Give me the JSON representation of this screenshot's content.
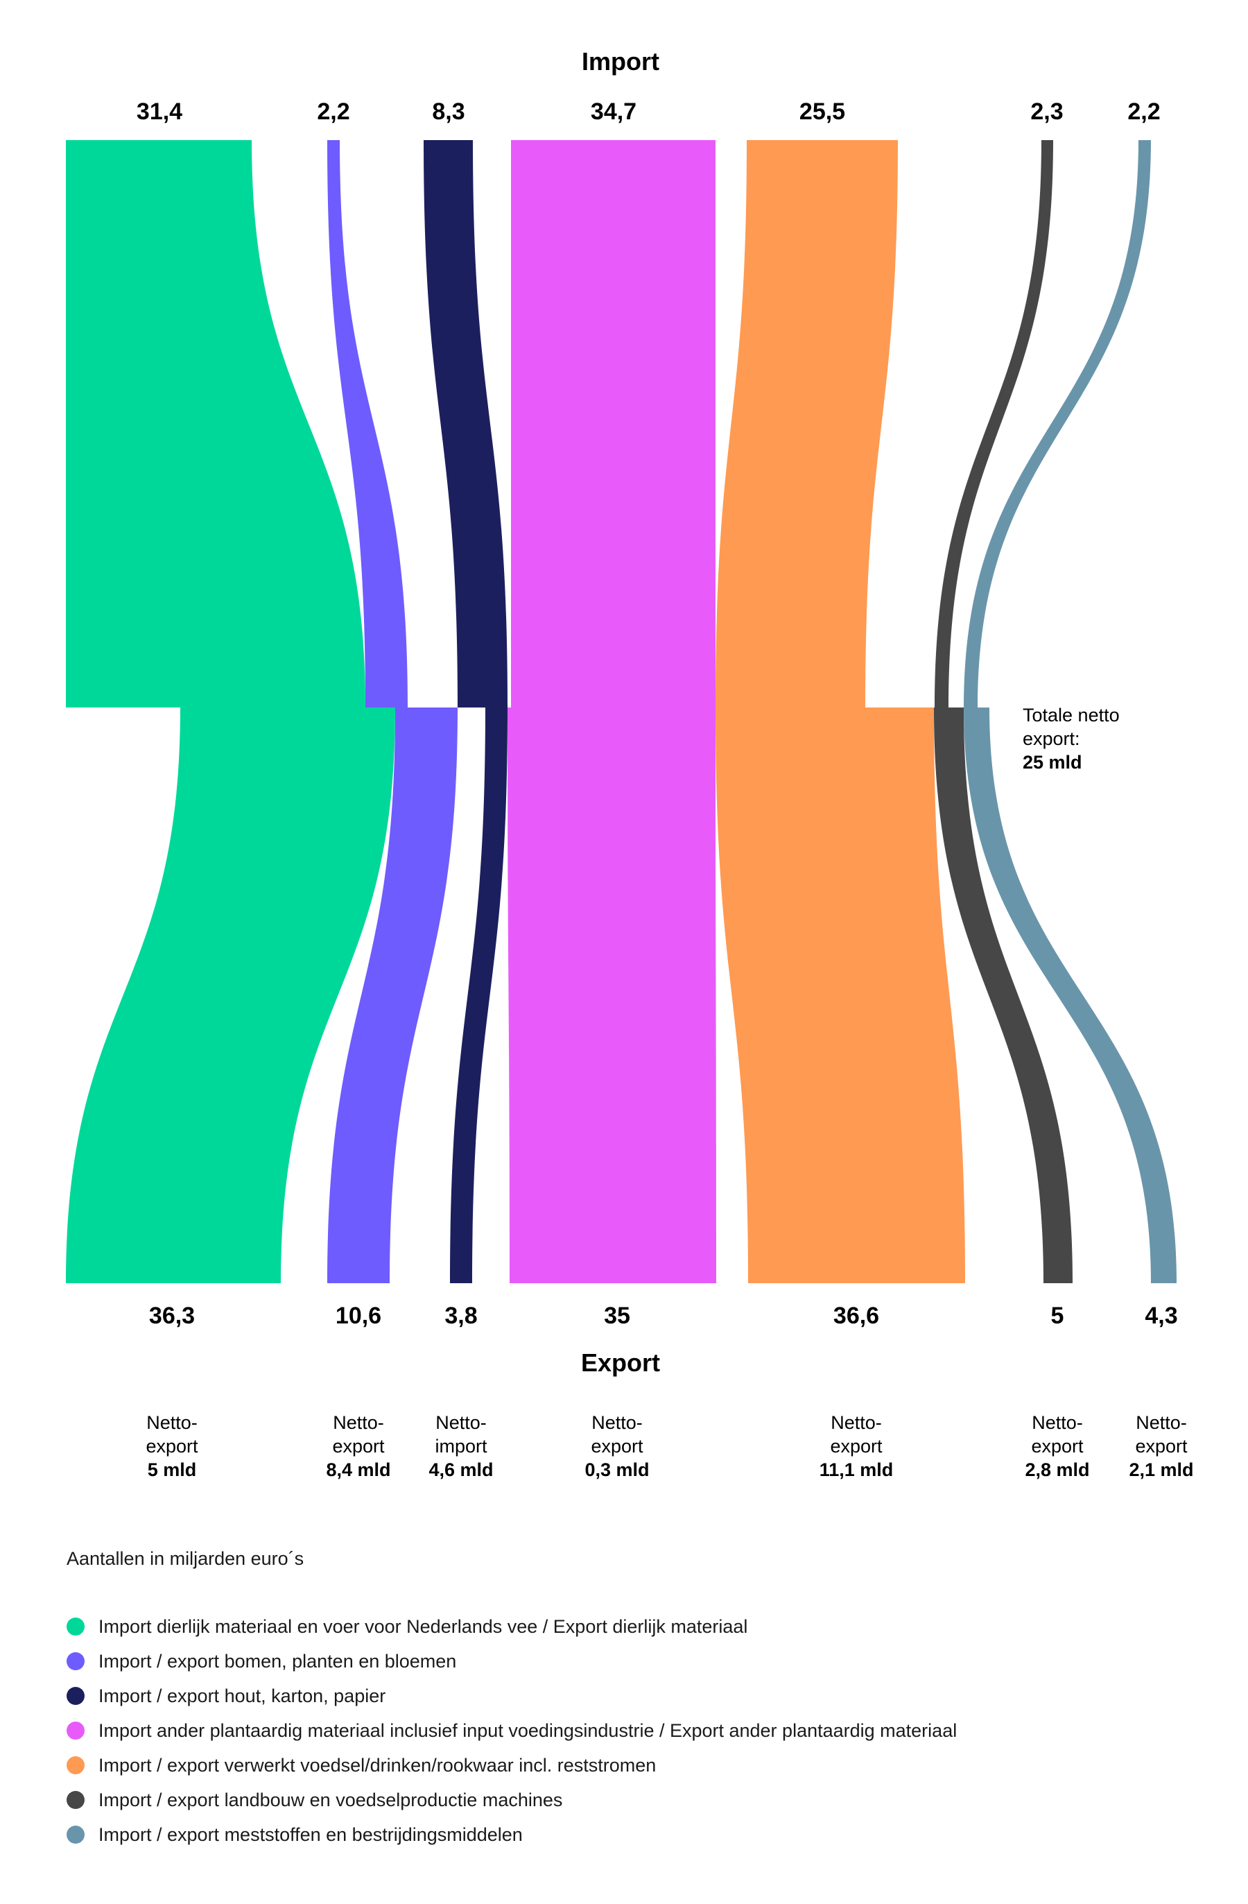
{
  "title_import": "Import",
  "title_export": "Export",
  "units_note": "Aantallen in miljarden euro´s",
  "total_net": {
    "line1": "Totale netto",
    "line2": "export:",
    "value": "25 mld"
  },
  "chart_data": {
    "type": "sankey",
    "flows": [
      {
        "import": 31.4,
        "import_label": "31,4",
        "export": 36.3,
        "export_label": "36,3",
        "net_line1": "Netto-",
        "net_line2": "export",
        "net_value": "5 mld",
        "color": "#00d89a",
        "legend": "Import dierlijk materiaal en voer voor Nederlands vee / Export dierlijk materiaal"
      },
      {
        "import": 2.2,
        "import_label": "2,2",
        "export": 10.6,
        "export_label": "10,6",
        "net_line1": "Netto-",
        "net_line2": "export",
        "net_value": "8,4 mld",
        "color": "#6e5cff",
        "legend": "Import / export bomen, planten en bloemen"
      },
      {
        "import": 8.3,
        "import_label": "8,3",
        "export": 3.8,
        "export_label": "3,8",
        "net_line1": "Netto-",
        "net_line2": "import",
        "net_value": "4,6 mld",
        "color": "#1c1f5e",
        "legend": "Import / export hout, karton, papier"
      },
      {
        "import": 34.7,
        "import_label": "34,7",
        "export": 35,
        "export_label": "35",
        "net_line1": "Netto-",
        "net_line2": "export",
        "net_value": "0,3 mld",
        "color": "#e85bfa",
        "legend": "Import ander plantaardig materiaal inclusief input voedingsindustrie / Export ander plantaardig materiaal"
      },
      {
        "import": 25.5,
        "import_label": "25,5",
        "export": 36.6,
        "export_label": "36,6",
        "net_line1": "Netto-",
        "net_line2": "export",
        "net_value": "11,1 mld",
        "color": "#ff9a52",
        "legend": "Import / export verwerkt voedsel/drinken/rookwaar incl. reststromen"
      },
      {
        "import": 2.3,
        "import_label": "2,3",
        "export": 5,
        "export_label": "5",
        "net_line1": "Netto-",
        "net_line2": "export",
        "net_value": "2,8 mld",
        "color": "#474747",
        "legend": "Import / export landbouw en voedselproductie machines"
      },
      {
        "import": 2.2,
        "import_label": "2,2",
        "export": 4.3,
        "export_label": "4,3",
        "net_line1": "Netto-",
        "net_line2": "export",
        "net_value": "2,1 mld",
        "color": "#6995ab",
        "legend": "Import / export meststoffen en bestrijdingsmiddelen"
      }
    ]
  }
}
